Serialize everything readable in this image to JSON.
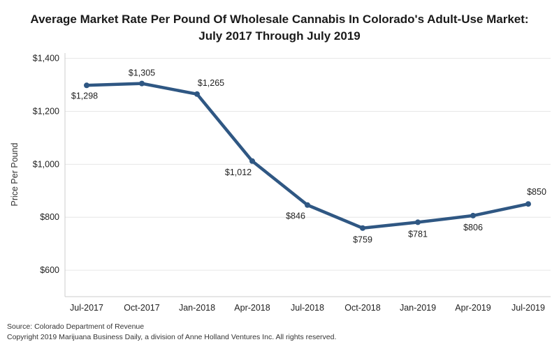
{
  "title_line1": "Average Market Rate Per Pound Of Wholesale Cannabis In Colorado's Adult-Use Market:",
  "title_line2": "July 2017 Through July 2019",
  "footer": {
    "source": "Source: Colorado Department of Revenue",
    "copyright": "Copyright 2019 Marijuana Business Daily, a division of Anne Holland Ventures Inc. All rights reserved."
  },
  "colors": {
    "line": "#2f5783",
    "grid": "#e6e6e6",
    "axis": "#cccccc"
  },
  "chart_data": {
    "type": "line",
    "title": "Average Market Rate Per Pound Of Wholesale Cannabis In Colorado's Adult-Use Market: July 2017 Through July 2019",
    "xlabel": "",
    "ylabel": "Price Per Pound",
    "categories": [
      "Jul-2017",
      "Oct-2017",
      "Jan-2018",
      "Apr-2018",
      "Jul-2018",
      "Oct-2018",
      "Jan-2019",
      "Apr-2019",
      "Jul-2019"
    ],
    "values": [
      1298,
      1305,
      1265,
      1012,
      846,
      759,
      781,
      806,
      850
    ],
    "data_labels": [
      "$1,298",
      "$1,305",
      "$1,265",
      "$1,012",
      "$846",
      "$759",
      "$781",
      "$806",
      "$850"
    ],
    "y_ticks": [
      600,
      800,
      1000,
      1200,
      1400
    ],
    "y_tick_labels": [
      "$600",
      "$800",
      "$1,000",
      "$1,200",
      "$1,400"
    ],
    "ylim": [
      500,
      1420
    ],
    "grid": true,
    "legend": "none"
  }
}
